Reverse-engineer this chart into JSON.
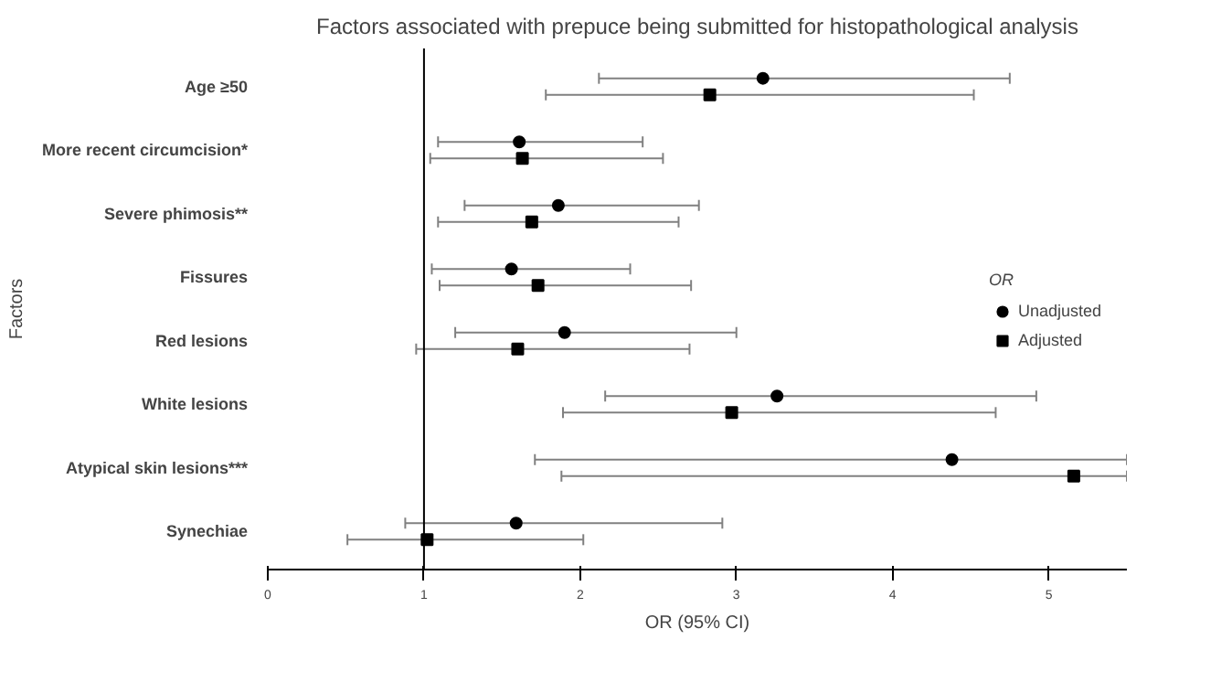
{
  "chart_data": {
    "type": "scatter",
    "orientation": "horizontal",
    "title": "Factors associated with prepuce being submitted for histopathological analysis",
    "xlabel": "OR (95% CI)",
    "ylabel": "Factors",
    "legend_title": "OR",
    "legend": "right",
    "grid": false,
    "categories": [
      "Age ≥50",
      "More recent circumcision*",
      "Severe phimosis**",
      "Fissures",
      "Red lesions",
      "White lesions",
      "Atypical skin lesions***",
      "Synechiae"
    ],
    "xlim": [
      0,
      5.5
    ],
    "xticks": [
      0,
      1,
      2,
      3,
      4,
      5
    ],
    "ref_lines": [
      {
        "axis": "x",
        "value": 1,
        "color": "#000000"
      }
    ],
    "series": [
      {
        "name": "Unadjusted",
        "color": "#000000",
        "marker": "circle",
        "values": [
          3.17,
          1.61,
          1.86,
          1.56,
          1.9,
          3.26,
          4.38,
          1.59
        ],
        "errors": [
          [
            2.12,
            4.75
          ],
          [
            1.09,
            2.4
          ],
          [
            1.26,
            2.76
          ],
          [
            1.05,
            2.32
          ],
          [
            1.2,
            3.0
          ],
          [
            2.16,
            4.92
          ],
          [
            1.71,
            5.5
          ],
          [
            0.88,
            2.91
          ]
        ]
      },
      {
        "name": "Adjusted",
        "color": "#000000",
        "marker": "square",
        "values": [
          2.83,
          1.63,
          1.69,
          1.73,
          1.6,
          2.97,
          5.16,
          1.02
        ],
        "errors": [
          [
            1.78,
            4.52
          ],
          [
            1.04,
            2.53
          ],
          [
            1.09,
            2.63
          ],
          [
            1.1,
            2.71
          ],
          [
            0.95,
            2.7
          ],
          [
            1.89,
            4.66
          ],
          [
            1.88,
            5.5
          ],
          [
            0.51,
            2.02
          ]
        ]
      }
    ]
  }
}
